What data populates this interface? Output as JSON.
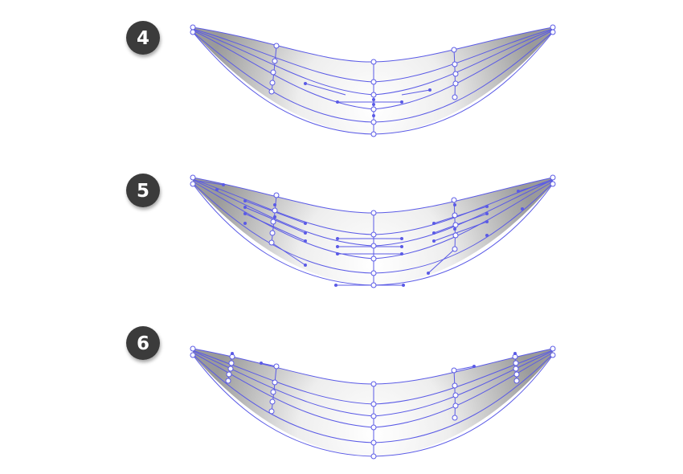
{
  "colors": {
    "mesh_line": "#5a5ae6",
    "badge_fill": "#3a3a3a",
    "badge_text": "#ffffff",
    "shape_dark": "#9e9e9e",
    "shape_light": "#ffffff"
  },
  "steps": [
    {
      "label": "4"
    },
    {
      "label": "5"
    },
    {
      "label": "6"
    }
  ]
}
